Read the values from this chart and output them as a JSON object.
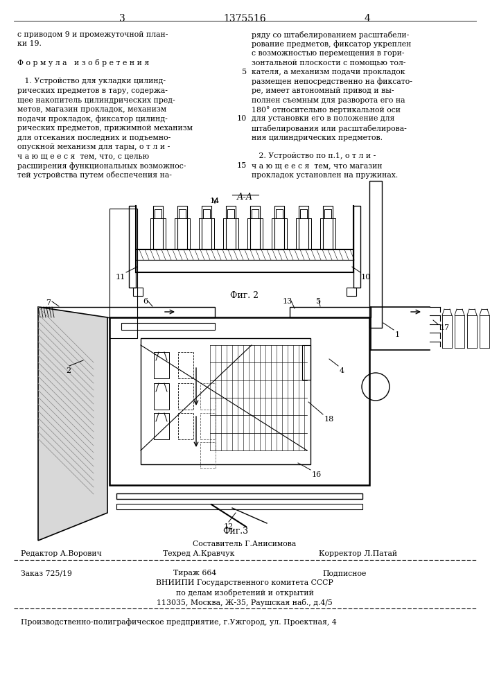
{
  "page_width": 7.07,
  "page_height": 10.0,
  "bg_color": "#ffffff",
  "header_page_left": "3",
  "header_patent": "1375516",
  "header_page_right": "4",
  "left_col_text": [
    "с приводом 9 и промежуточной план-",
    "ки 19.",
    "",
    "Ф о р м у л а   и з о б р е т е н и я",
    "",
    "   1. Устройство для укладки цилинд-",
    "рических предметов в тару, содержа-",
    "щее накопитель цилиндрических пред-",
    "метов, магазин прокладок, механизм",
    "подачи прокладок, фиксатор цилинд-",
    "рических предметов, прижимной механизм",
    "для отсекания последних и подъемно-",
    "опускной механизм для тары, о т л и -",
    "ч а ю щ е е с я  тем, что, с целью",
    "расширения функциональных возможнос-",
    "тей устройства путем обеспечения на-"
  ],
  "right_col_text": [
    "ряду со штабелированием расштабели-",
    "рование предметов, фиксатор укреплен",
    "с возможностью перемещения в гори-",
    "зонтальной плоскости с помощью тол-",
    "кателя, а механизм подачи прокладок",
    "размещен непосредственно на фиксато-",
    "ре, имеет автономный привод и вы-",
    "полнен съемным для разворота его на",
    "180° относительно вертикальной оси",
    "для установки его в положение для",
    "штабелирования или расштабелирова-",
    "ния цилиндрических предметов.",
    "",
    "   2. Устройство по п.1, о т л и -",
    "ч а ю щ е е с я  тем, что магазин",
    "прокладок установлен на пружинах."
  ],
  "fig2_label": "Фиг. 2",
  "fig3_label": "Фиг.3",
  "aa_label": "А-А",
  "footer_composer": "Составитель Г.Анисимова",
  "footer_editor": "Редактор А.Ворович",
  "footer_techred": "Техред А.Кравчук",
  "footer_corrector": "Корректор Л.Патай",
  "footer_order": "Заказ 725/19",
  "footer_tirazh": "Тираж 664",
  "footer_podpis": "Подписное",
  "footer_org1": "ВНИИПИ Государственного комитета СССР",
  "footer_org2": "по делам изобретений и открытий",
  "footer_org3": "113035, Москва, Ж-35, Раушская наб., д.4/5",
  "footer_printer": "Производственно-полиграфическое предприятие, г.Ужгород, ул. Проектная, 4",
  "text_color": "#000000"
}
